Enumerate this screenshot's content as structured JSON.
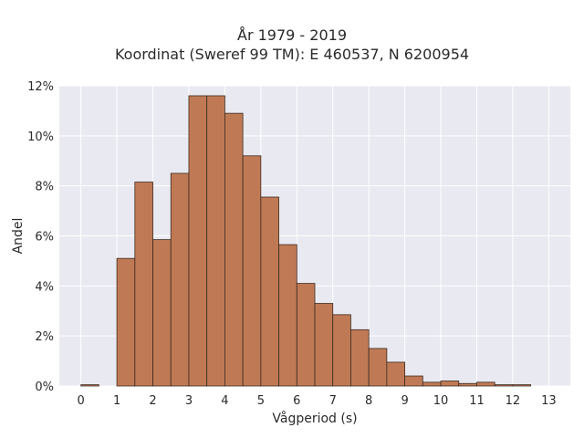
{
  "chart_data": {
    "type": "bar",
    "title": "År 1979 - 2019",
    "subtitle": "Koordinat (Sweref 99 TM): E 460537, N 6200954",
    "xlabel": "Vågperiod (s)",
    "ylabel": "Andel",
    "xlim": [
      -0.6,
      13.6
    ],
    "ylim": [
      0,
      12
    ],
    "x_ticks": [
      0,
      1,
      2,
      3,
      4,
      5,
      6,
      7,
      8,
      9,
      10,
      11,
      12,
      13
    ],
    "y_ticks": [
      0,
      2,
      4,
      6,
      8,
      10,
      12
    ],
    "y_tick_labels": [
      "0%",
      "2%",
      "4%",
      "6%",
      "8%",
      "10%",
      "12%"
    ],
    "bin_width": 0.5,
    "bins": [
      {
        "x0": 0.0,
        "value": 0.05
      },
      {
        "x0": 1.0,
        "value": 5.1
      },
      {
        "x0": 1.5,
        "value": 8.15
      },
      {
        "x0": 2.0,
        "value": 5.85
      },
      {
        "x0": 2.5,
        "value": 8.5
      },
      {
        "x0": 3.0,
        "value": 11.6
      },
      {
        "x0": 3.5,
        "value": 11.6
      },
      {
        "x0": 4.0,
        "value": 10.9
      },
      {
        "x0": 4.5,
        "value": 9.2
      },
      {
        "x0": 5.0,
        "value": 7.55
      },
      {
        "x0": 5.5,
        "value": 5.65
      },
      {
        "x0": 6.0,
        "value": 4.1
      },
      {
        "x0": 6.5,
        "value": 3.3
      },
      {
        "x0": 7.0,
        "value": 2.85
      },
      {
        "x0": 7.5,
        "value": 2.25
      },
      {
        "x0": 8.0,
        "value": 1.5
      },
      {
        "x0": 8.5,
        "value": 0.95
      },
      {
        "x0": 9.0,
        "value": 0.4
      },
      {
        "x0": 9.5,
        "value": 0.15
      },
      {
        "x0": 10.0,
        "value": 0.2
      },
      {
        "x0": 10.5,
        "value": 0.1
      },
      {
        "x0": 11.0,
        "value": 0.15
      },
      {
        "x0": 11.5,
        "value": 0.05
      },
      {
        "x0": 12.0,
        "value": 0.05
      }
    ],
    "grid": true,
    "colors": {
      "plot_background": "#e9e9f1",
      "bar_fill": "#bf7a55",
      "bar_edge": "#3d2a1e",
      "grid": "#ffffff"
    }
  }
}
